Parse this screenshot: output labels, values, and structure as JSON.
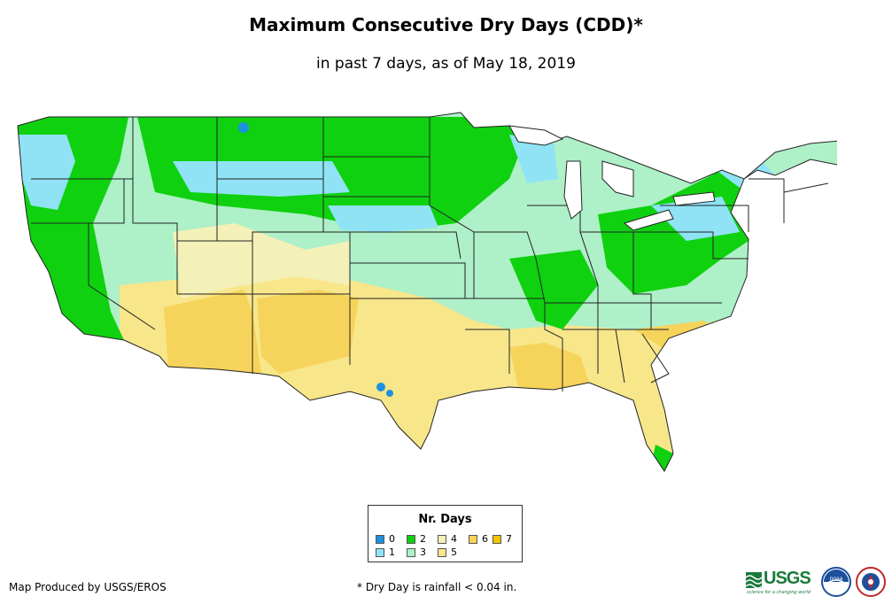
{
  "title": "Maximum Consecutive Dry Days (CDD)*",
  "subtitle": "in past 7 days, as of May 18, 2019",
  "legend": {
    "title": "Nr. Days",
    "items": [
      {
        "label": "0",
        "color": "#1e90e0"
      },
      {
        "label": "1",
        "color": "#8fe3f5"
      },
      {
        "label": "2",
        "color": "#0fd10f"
      },
      {
        "label": "3",
        "color": "#aef0c8"
      },
      {
        "label": "4",
        "color": "#f3f1b8"
      },
      {
        "label": "5",
        "color": "#f8e68a"
      },
      {
        "label": "6",
        "color": "#f6d35a"
      },
      {
        "label": "7",
        "color": "#f5c400"
      }
    ]
  },
  "footer": {
    "producer": "Map Produced by USGS/EROS",
    "footnote": "* Dry Day is rainfall < 0.04 in."
  },
  "logos": {
    "usgs_text": "USGS",
    "usgs_tagline": "science for a changing world",
    "noaa_text": "noaa"
  },
  "colors": {
    "boundary": "#222222",
    "usgs_green": "#1a7a3c",
    "noaa_blue": "#1c4f9c"
  }
}
